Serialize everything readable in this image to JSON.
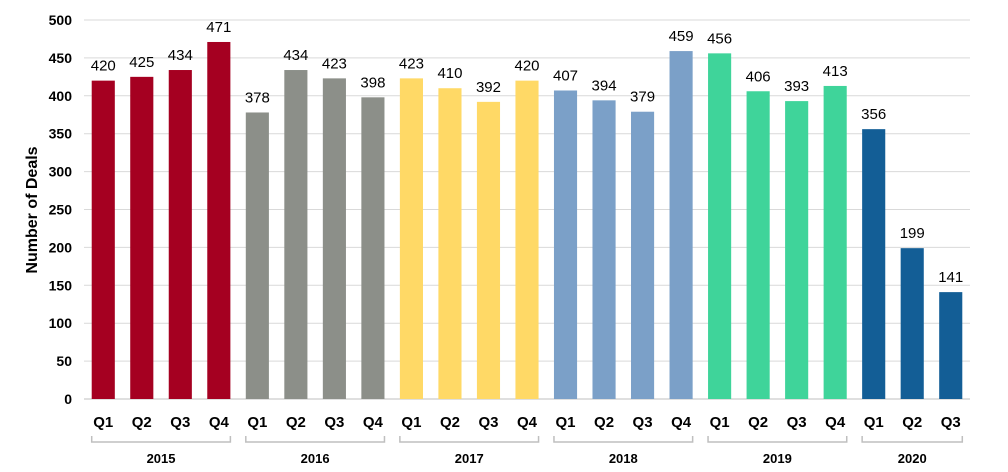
{
  "chart_data": {
    "type": "bar",
    "title": "",
    "xlabel": "",
    "ylabel": "Number of Deals",
    "ylim": [
      0,
      500
    ],
    "yticks": [
      0,
      50,
      100,
      150,
      200,
      250,
      300,
      350,
      400,
      450,
      500
    ],
    "grid": true,
    "categories": [
      "Q1",
      "Q2",
      "Q3",
      "Q4",
      "Q1",
      "Q2",
      "Q3",
      "Q4",
      "Q1",
      "Q2",
      "Q3",
      "Q4",
      "Q1",
      "Q2",
      "Q3",
      "Q4",
      "Q1",
      "Q2",
      "Q3",
      "Q4",
      "Q1",
      "Q2",
      "Q3"
    ],
    "values": [
      420,
      425,
      434,
      471,
      378,
      434,
      423,
      398,
      423,
      410,
      392,
      420,
      407,
      394,
      379,
      459,
      456,
      406,
      393,
      413,
      356,
      199,
      141
    ],
    "groups": [
      {
        "name": "2015",
        "count": 4,
        "color": "#A50021"
      },
      {
        "name": "2016",
        "count": 4,
        "color": "#8C8F89"
      },
      {
        "name": "2017",
        "count": 4,
        "color": "#FFD966"
      },
      {
        "name": "2018",
        "count": 4,
        "color": "#7BA0C8"
      },
      {
        "name": "2019",
        "count": 4,
        "color": "#3FD49A"
      },
      {
        "name": "2020",
        "count": 3,
        "color": "#135E96"
      }
    ]
  }
}
